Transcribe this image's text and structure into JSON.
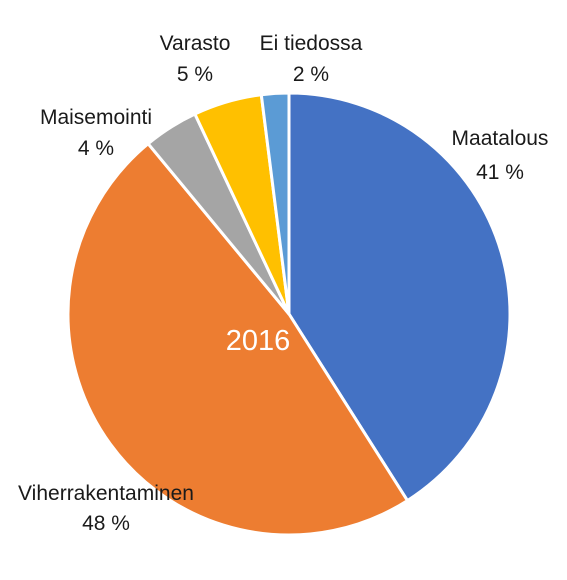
{
  "chart_data": {
    "type": "pie",
    "title": "",
    "center_label": "2016",
    "start_angle_deg": 0,
    "direction": "clockwise",
    "slices": [
      {
        "name": "Maatalous",
        "label": "41 %",
        "value": 41,
        "color": "#4472C4"
      },
      {
        "name": "Viherrakentaminen",
        "label": "48 %",
        "value": 48,
        "color": "#ED7D31"
      },
      {
        "name": "Maisemointi",
        "label": "4 %",
        "value": 4,
        "color": "#A5A5A5"
      },
      {
        "name": "Varasto",
        "label": "5 %",
        "value": 5,
        "color": "#FFC000"
      },
      {
        "name": "Ei tiedossa",
        "label": "2 %",
        "value": 2,
        "color": "#5B9BD5"
      }
    ]
  }
}
